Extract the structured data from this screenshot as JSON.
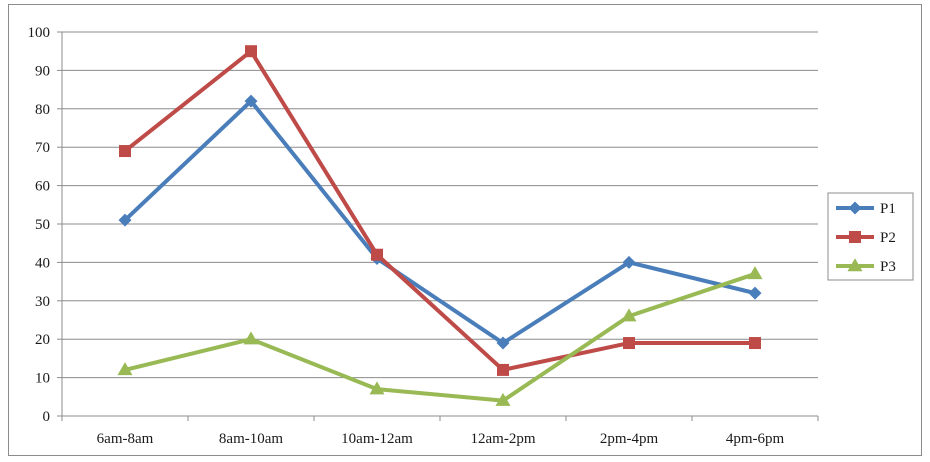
{
  "chart_data": {
    "type": "line",
    "categories": [
      "6am-8am",
      "8am-10am",
      "10am-12am",
      "12am-2pm",
      "2pm-4pm",
      "4pm-6pm"
    ],
    "series": [
      {
        "name": "P1",
        "values": [
          51,
          82,
          41,
          19,
          40,
          32
        ],
        "color": "#4a7ebb",
        "marker": "diamond"
      },
      {
        "name": "P2",
        "values": [
          69,
          95,
          42,
          12,
          19,
          19
        ],
        "color": "#be4b48",
        "marker": "square"
      },
      {
        "name": "P3",
        "values": [
          12,
          20,
          7,
          4,
          26,
          37
        ],
        "color": "#98b954",
        "marker": "triangle"
      }
    ],
    "ylim": [
      0,
      100
    ],
    "yticks": [
      "0",
      "10",
      "20",
      "30",
      "40",
      "50",
      "60",
      "70",
      "80",
      "90",
      "100"
    ],
    "title": "",
    "xlabel": "",
    "ylabel": "",
    "grid": "horizontal",
    "legend_position": "right"
  }
}
